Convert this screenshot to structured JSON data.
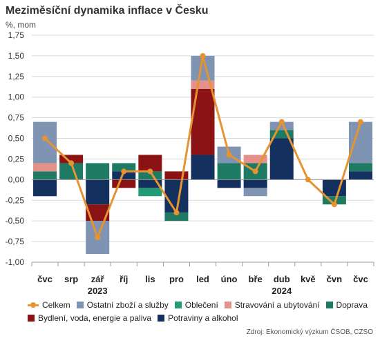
{
  "title": "Meziměsíční dynamika inflace v Česku",
  "unit_label": "%, mom",
  "source": "Zdroj: Ekonomický výzkum ČSOB, CZSO",
  "chart_data": {
    "type": "bar",
    "stacked": true,
    "categories": [
      "čvc",
      "srp",
      "zář",
      "říj",
      "lis",
      "pro",
      "led",
      "úno",
      "bře",
      "dub",
      "kvě",
      "čvn",
      "čvc"
    ],
    "year_labels": [
      {
        "label": "2023",
        "category_index": 2
      },
      {
        "label": "2024",
        "category_index": 9
      }
    ],
    "ylim": [
      -1.0,
      1.75
    ],
    "yticks": [
      "1,75",
      "1,50",
      "1,25",
      "1,00",
      "0,75",
      "0,50",
      "0,25",
      "0,00",
      "-0,25",
      "-0,50",
      "-0,75",
      "-1,00"
    ],
    "ytick_values": [
      1.75,
      1.5,
      1.25,
      1.0,
      0.75,
      0.5,
      0.25,
      0.0,
      -0.25,
      -0.5,
      -0.75,
      -1.0
    ],
    "grid": "horizontal",
    "legend_position": "bottom",
    "series": [
      {
        "name": "Potraviny a alkohol",
        "color": "#14305e",
        "values": [
          -0.2,
          0.0,
          -0.3,
          0.1,
          -0.1,
          -0.4,
          0.3,
          -0.1,
          -0.1,
          0.5,
          0.0,
          -0.2,
          0.1
        ]
      },
      {
        "name": "Doprava",
        "color": "#1f7a63",
        "values": [
          0.1,
          0.2,
          0.2,
          0.1,
          0.1,
          -0.1,
          0.0,
          0.2,
          0.2,
          0.1,
          0.0,
          -0.1,
          0.1
        ]
      },
      {
        "name": "Bydlení, voda, energie a paliva",
        "color": "#8c1313",
        "values": [
          0.0,
          0.1,
          -0.2,
          -0.1,
          0.2,
          0.1,
          0.8,
          0.0,
          0.0,
          0.0,
          0.0,
          0.0,
          0.0
        ]
      },
      {
        "name": "Stravování a ubytování",
        "color": "#e3918a",
        "values": [
          0.1,
          0.0,
          0.0,
          0.0,
          0.0,
          0.0,
          0.1,
          0.0,
          0.1,
          0.0,
          0.0,
          0.0,
          0.0
        ]
      },
      {
        "name": "Oblečení",
        "color": "#229a76",
        "values": [
          0.0,
          0.0,
          0.0,
          0.0,
          -0.1,
          0.0,
          0.0,
          0.0,
          0.0,
          0.0,
          0.0,
          0.0,
          0.0
        ]
      },
      {
        "name": "Ostatní zboží a služby",
        "color": "#7f93b3",
        "values": [
          0.5,
          0.0,
          -0.4,
          0.0,
          0.0,
          0.0,
          0.3,
          0.2,
          -0.1,
          0.1,
          0.0,
          0.0,
          0.5
        ]
      }
    ],
    "line": {
      "name": "Celkem",
      "color": "#e59431",
      "values": [
        0.5,
        0.2,
        -0.7,
        0.1,
        0.1,
        -0.4,
        1.5,
        0.3,
        0.1,
        0.7,
        0.0,
        -0.3,
        0.7
      ]
    }
  },
  "legend": {
    "row1": [
      "Celkem",
      "Ostatní zboží a služby",
      "Oblečení",
      "Stravování a ubytování",
      "Doprava"
    ],
    "row2": [
      "Bydlení, voda, energie a paliva",
      "Potraviny a alkohol"
    ],
    "colors": {
      "Celkem": "#e59431",
      "Ostatní zboží a služby": "#7f93b3",
      "Oblečení": "#229a76",
      "Stravování a ubytování": "#e3918a",
      "Doprava": "#1f7a63",
      "Bydlení, voda, energie a paliva": "#8c1313",
      "Potraviny a alkohol": "#14305e"
    }
  }
}
